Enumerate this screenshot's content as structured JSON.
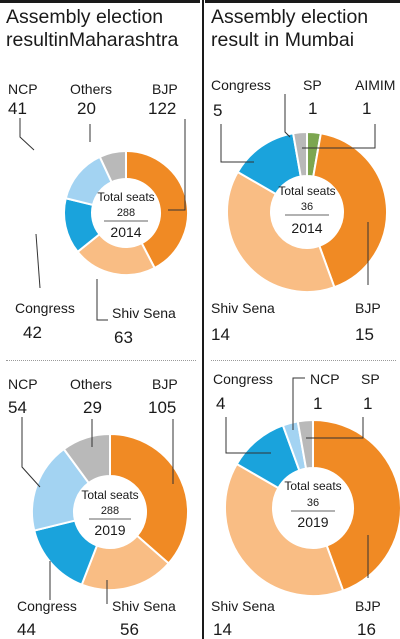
{
  "chart_data": [
    {
      "type": "pie",
      "title": "Assembly election resultinMaharashtra",
      "year": "2014",
      "center_label": "Total seats",
      "total": 288,
      "slices": [
        {
          "name": "BJP",
          "value": 122,
          "color": "#f08a24"
        },
        {
          "name": "Shiv Sena",
          "value": 63,
          "color": "#f9bd84"
        },
        {
          "name": "Congress",
          "value": 42,
          "color": "#1aa3dc"
        },
        {
          "name": "NCP",
          "value": 41,
          "color": "#a3d3f2"
        },
        {
          "name": "Others",
          "value": 20,
          "color": "#b9b9b9"
        }
      ]
    },
    {
      "type": "pie",
      "year": "2019",
      "center_label": "Total seats",
      "total": 288,
      "slices": [
        {
          "name": "BJP",
          "value": 105,
          "color": "#f08a24"
        },
        {
          "name": "Shiv Sena",
          "value": 56,
          "color": "#f9bd84"
        },
        {
          "name": "Congress",
          "value": 44,
          "color": "#1aa3dc"
        },
        {
          "name": "NCP",
          "value": 54,
          "color": "#a3d3f2"
        },
        {
          "name": "Others",
          "value": 29,
          "color": "#b9b9b9"
        }
      ]
    },
    {
      "type": "pie",
      "title": "Assembly election result in Mumbai",
      "year": "2014",
      "center_label": "Total seats",
      "total": 36,
      "slices": [
        {
          "name": "BJP",
          "value": 15,
          "color": "#f08a24"
        },
        {
          "name": "Shiv Sena",
          "value": 14,
          "color": "#f9bd84"
        },
        {
          "name": "Congress",
          "value": 5,
          "color": "#1aa3dc"
        },
        {
          "name": "SP",
          "value": 1,
          "color": "#b9b9b9"
        },
        {
          "name": "AIMIM",
          "value": 1,
          "color": "#7ca650"
        }
      ]
    },
    {
      "type": "pie",
      "year": "2019",
      "center_label": "Total seats",
      "total": 36,
      "slices": [
        {
          "name": "BJP",
          "value": 16,
          "color": "#f08a24"
        },
        {
          "name": "Shiv Sena",
          "value": 14,
          "color": "#f9bd84"
        },
        {
          "name": "Congress",
          "value": 4,
          "color": "#1aa3dc"
        },
        {
          "name": "NCP",
          "value": 1,
          "color": "#a3d3f2"
        },
        {
          "name": "SP",
          "value": 1,
          "color": "#b9b9b9"
        }
      ]
    }
  ],
  "titles": {
    "maharashtra": [
      "Assembly election",
      "resultinMaharashtra"
    ],
    "mumbai": [
      "Assembly election",
      "result in Mumbai"
    ]
  }
}
